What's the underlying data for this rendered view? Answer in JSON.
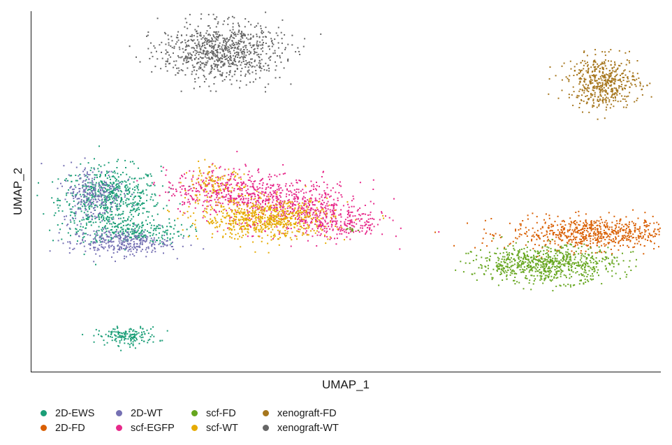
{
  "chart_data": {
    "type": "scatter",
    "title": "",
    "xlabel": "UMAP_1",
    "ylabel": "UMAP_2",
    "xlim": [
      -12,
      13
    ],
    "ylim": [
      -9,
      11
    ],
    "grid": false,
    "legend_position": "bottom",
    "series": [
      {
        "name": "2D-EWS",
        "color": "#1b9e77",
        "clusters": [
          {
            "center": [
              -8.9,
              0.6
            ],
            "spread": [
              1.0,
              0.9
            ],
            "n": 620
          },
          {
            "center": [
              -8.1,
              -1.2
            ],
            "spread": [
              1.1,
              0.35
            ],
            "n": 230
          },
          {
            "center": [
              -8.2,
              -7.0
            ],
            "spread": [
              0.6,
              0.25
            ],
            "n": 160
          }
        ]
      },
      {
        "name": "2D-FD",
        "color": "#d95f02",
        "clusters": [
          {
            "center": [
              10.4,
              -1.3
            ],
            "spread": [
              1.7,
              0.45
            ],
            "n": 700
          }
        ]
      },
      {
        "name": "2D-WT",
        "color": "#7570b3",
        "clusters": [
          {
            "center": [
              -9.6,
              0.9
            ],
            "spread": [
              0.6,
              0.8
            ],
            "n": 260
          },
          {
            "center": [
              -8.5,
              -1.8
            ],
            "spread": [
              1.0,
              0.35
            ],
            "n": 300
          }
        ]
      },
      {
        "name": "scf-EGFP",
        "color": "#e7298a",
        "clusters": [
          {
            "center": [
              -4.3,
              1.1
            ],
            "spread": [
              1.2,
              0.6
            ],
            "n": 400
          },
          {
            "center": [
              -1.5,
              0.2
            ],
            "spread": [
              1.3,
              0.7
            ],
            "n": 500
          },
          {
            "center": [
              0.3,
              -0.8
            ],
            "spread": [
              0.9,
              0.45
            ],
            "n": 200
          }
        ]
      },
      {
        "name": "scf-FD",
        "color": "#66a61e",
        "clusters": [
          {
            "center": [
              8.4,
              -3.0
            ],
            "spread": [
              1.4,
              0.5
            ],
            "n": 750
          },
          {
            "center": [
              0.7,
              -1.1
            ],
            "spread": [
              0.2,
              0.06
            ],
            "n": 12
          }
        ]
      },
      {
        "name": "scf-WT",
        "color": "#e6ab02",
        "clusters": [
          {
            "center": [
              -4.8,
              1.4
            ],
            "spread": [
              0.6,
              0.5
            ],
            "n": 120
          },
          {
            "center": [
              -2.7,
              -0.5
            ],
            "spread": [
              1.3,
              0.55
            ],
            "n": 700
          }
        ]
      },
      {
        "name": "xenograft-FD",
        "color": "#a6761d",
        "clusters": [
          {
            "center": [
              10.7,
              7.1
            ],
            "spread": [
              0.7,
              0.7
            ],
            "n": 500
          }
        ]
      },
      {
        "name": "xenograft-WT",
        "color": "#666666",
        "clusters": [
          {
            "center": [
              -4.5,
              8.8
            ],
            "spread": [
              1.2,
              0.8
            ],
            "n": 850
          }
        ]
      }
    ]
  },
  "legend": {
    "items": [
      {
        "label": "2D-EWS",
        "color": "#1b9e77"
      },
      {
        "label": "2D-WT",
        "color": "#7570b3"
      },
      {
        "label": "scf-FD",
        "color": "#66a61e"
      },
      {
        "label": "xenograft-FD",
        "color": "#a6761d"
      },
      {
        "label": "2D-FD",
        "color": "#d95f02"
      },
      {
        "label": "scf-EGFP",
        "color": "#e7298a"
      },
      {
        "label": "scf-WT",
        "color": "#e6ab02"
      },
      {
        "label": "xenograft-WT",
        "color": "#666666"
      }
    ]
  }
}
